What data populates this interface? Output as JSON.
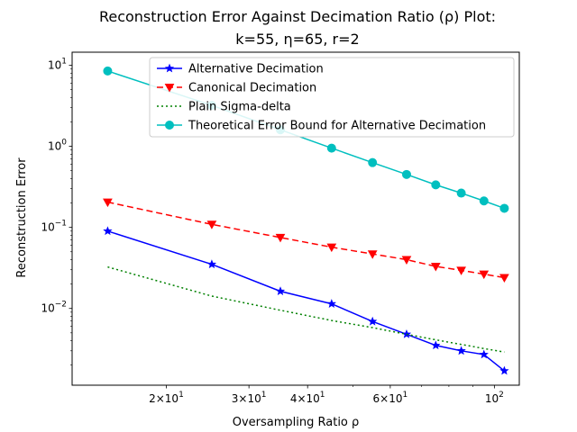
{
  "chart_data": {
    "type": "line",
    "title_line1": "Reconstruction Error Against Decimation Ratio (ρ) Plot:",
    "title_line2": "k=55, η=65, r=2",
    "xlabel": "Oversampling Ratio ρ",
    "ylabel": "Reconstruction Error",
    "xscale": "log",
    "yscale": "log",
    "xlim": [
      12.6,
      113
    ],
    "ylim": [
      0.00113,
      14.5
    ],
    "grid": false,
    "legend_position": "top-right",
    "x_ticks": [
      {
        "value": 20,
        "mant": "2",
        "exp": "1"
      },
      {
        "value": 30,
        "mant": "3",
        "exp": "1"
      },
      {
        "value": 40,
        "mant": "4",
        "exp": "1"
      },
      {
        "value": 60,
        "mant": "6",
        "exp": "1"
      },
      {
        "value": 100,
        "mant": "",
        "exp": "2"
      }
    ],
    "x_minor_ticks": [
      50,
      70,
      80,
      90
    ],
    "y_ticks": [
      {
        "value": 0.01,
        "exp": "−2"
      },
      {
        "value": 0.1,
        "exp": "−1"
      },
      {
        "value": 1,
        "exp": "0"
      },
      {
        "value": 10,
        "exp": "1"
      }
    ],
    "tick_base": "10",
    "tick_times": "×",
    "series": [
      {
        "name": "Alternative Decimation",
        "color": "#0000ff",
        "dash": "",
        "marker": "star",
        "x": [
          15,
          25,
          35,
          45,
          55,
          65,
          75,
          85,
          95,
          105
        ],
        "y": [
          0.09,
          0.035,
          0.0163,
          0.0114,
          0.0069,
          0.0048,
          0.0035,
          0.003,
          0.0027,
          0.0017
        ]
      },
      {
        "name": "Canonical Decimation",
        "color": "#ff0000",
        "dash": "7,4",
        "marker": "triangle-down",
        "x": [
          15,
          25,
          35,
          45,
          55,
          65,
          75,
          85,
          95,
          105
        ],
        "y": [
          0.205,
          0.109,
          0.075,
          0.057,
          0.047,
          0.04,
          0.033,
          0.0295,
          0.0265,
          0.024
        ]
      },
      {
        "name": "Plain Sigma-delta",
        "color": "#008000",
        "dash": "2,3",
        "marker": "none",
        "x": [
          15,
          25,
          35,
          45,
          55,
          65,
          75,
          85,
          95,
          105
        ],
        "y": [
          0.0325,
          0.0142,
          0.0095,
          0.0071,
          0.0058,
          0.0048,
          0.0041,
          0.0036,
          0.0032,
          0.0029
        ]
      },
      {
        "name": "Theoretical Error Bound for Alternative Decimation",
        "color": "#00bfbf",
        "dash": "",
        "marker": "circle",
        "x": [
          15,
          25,
          35,
          45,
          55,
          65,
          75,
          85,
          95,
          105
        ],
        "y": [
          8.5,
          3.2,
          1.6,
          0.95,
          0.63,
          0.45,
          0.335,
          0.265,
          0.212,
          0.172
        ]
      }
    ]
  }
}
